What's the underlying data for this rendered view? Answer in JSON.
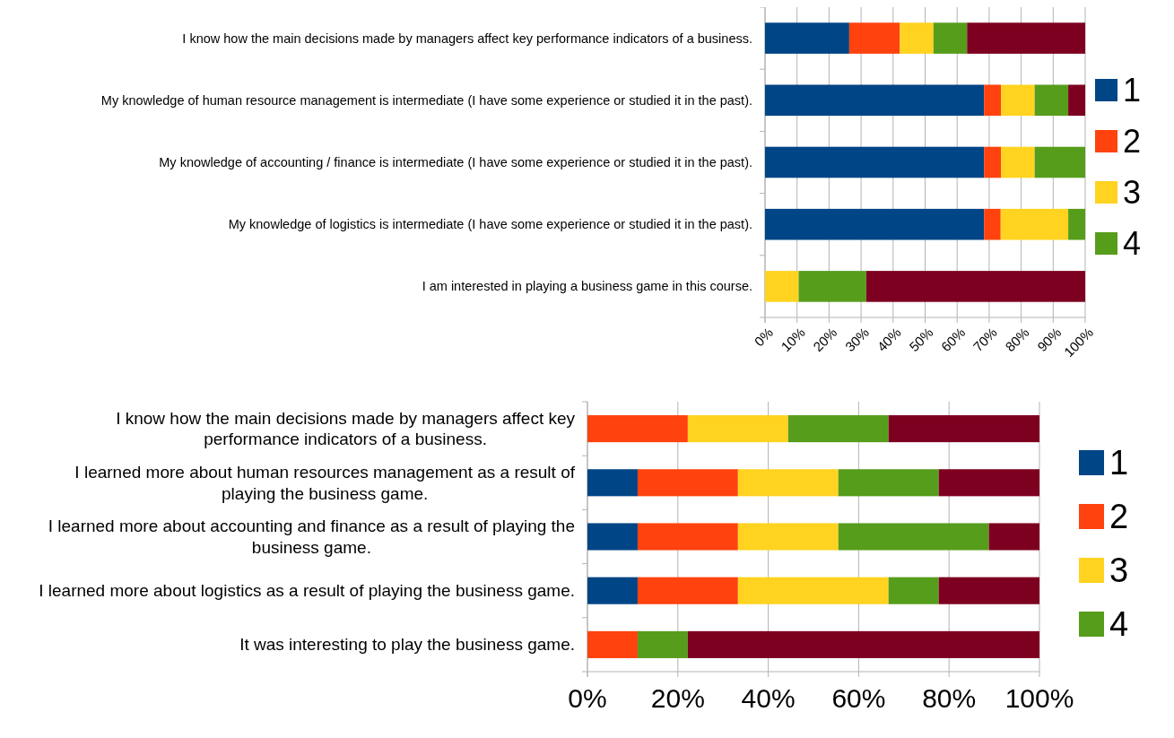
{
  "chart_data": [
    {
      "type": "bar",
      "orientation": "horizontal",
      "stacked": true,
      "categories": [
        "I know how the main decisions made by managers affect key performance indicators of a business.",
        "My knowledge of human resource management is intermediate (I have some experience or studied it in the past).",
        "My knowledge of accounting / finance is intermediate (I have some experience or studied it in the past).",
        "My knowledge of logistics is intermediate (I have some experience or studied it in the past).",
        "I am interested in playing a business game in this course."
      ],
      "series": [
        {
          "name": "1",
          "color": "#004586",
          "values": [
            26.3,
            68.4,
            68.4,
            68.4,
            0
          ]
        },
        {
          "name": "2",
          "color": "#ff420e",
          "values": [
            15.8,
            5.3,
            5.3,
            5.2,
            0
          ]
        },
        {
          "name": "3",
          "color": "#ffd320",
          "values": [
            10.5,
            10.5,
            10.5,
            21.1,
            10.5
          ]
        },
        {
          "name": "4",
          "color": "#579d1c",
          "values": [
            10.5,
            10.5,
            15.8,
            5.3,
            21.1
          ]
        },
        {
          "color": "#7e0021",
          "values": [
            36.9,
            5.3,
            0,
            0,
            68.4
          ]
        }
      ],
      "xlim": [
        0,
        100
      ],
      "xticks": [
        {
          "value": 0,
          "label": "0%"
        },
        {
          "value": 10,
          "label": "10%"
        },
        {
          "value": 20,
          "label": "20%"
        },
        {
          "value": 30,
          "label": "30%"
        },
        {
          "value": 40,
          "label": "40%"
        },
        {
          "value": 50,
          "label": "50%"
        },
        {
          "value": 60,
          "label": "60%"
        },
        {
          "value": 70,
          "label": "70%"
        },
        {
          "value": 80,
          "label": "80%"
        },
        {
          "value": 90,
          "label": "90%"
        },
        {
          "value": 100,
          "label": "100%"
        }
      ],
      "grid": "x",
      "legend": "right"
    },
    {
      "type": "bar",
      "orientation": "horizontal",
      "stacked": true,
      "categories": [
        "I know how the main decisions made by managers affect key performance indicators of a business.",
        "I learned more about human resources management as a result of playing the business game.",
        "I learned more about accounting and finance as a result of playing the business game.",
        "I learned more about logistics as a result of playing the business game.",
        "It was interesting to play the business game."
      ],
      "series": [
        {
          "name": "1",
          "color": "#004586",
          "values": [
            0,
            11.1,
            11.1,
            11.1,
            0
          ]
        },
        {
          "name": "2",
          "color": "#ff420e",
          "values": [
            22.2,
            22.2,
            22.2,
            22.2,
            11.1
          ]
        },
        {
          "name": "3",
          "color": "#ffd320",
          "values": [
            22.2,
            22.2,
            22.2,
            33.3,
            0
          ]
        },
        {
          "name": "4",
          "color": "#579d1c",
          "values": [
            22.2,
            22.2,
            33.3,
            11.1,
            11.1
          ]
        },
        {
          "color": "#7e0021",
          "values": [
            33.4,
            22.3,
            11.2,
            22.3,
            77.8
          ]
        }
      ],
      "xlim": [
        0,
        100
      ],
      "xticks": [
        {
          "value": 0,
          "label": "0%"
        },
        {
          "value": 20,
          "label": "20%"
        },
        {
          "value": 40,
          "label": "40%"
        },
        {
          "value": 60,
          "label": "60%"
        },
        {
          "value": 80,
          "label": "80%"
        },
        {
          "value": 100,
          "label": "100%"
        }
      ],
      "grid": "x",
      "legend": "right"
    }
  ]
}
